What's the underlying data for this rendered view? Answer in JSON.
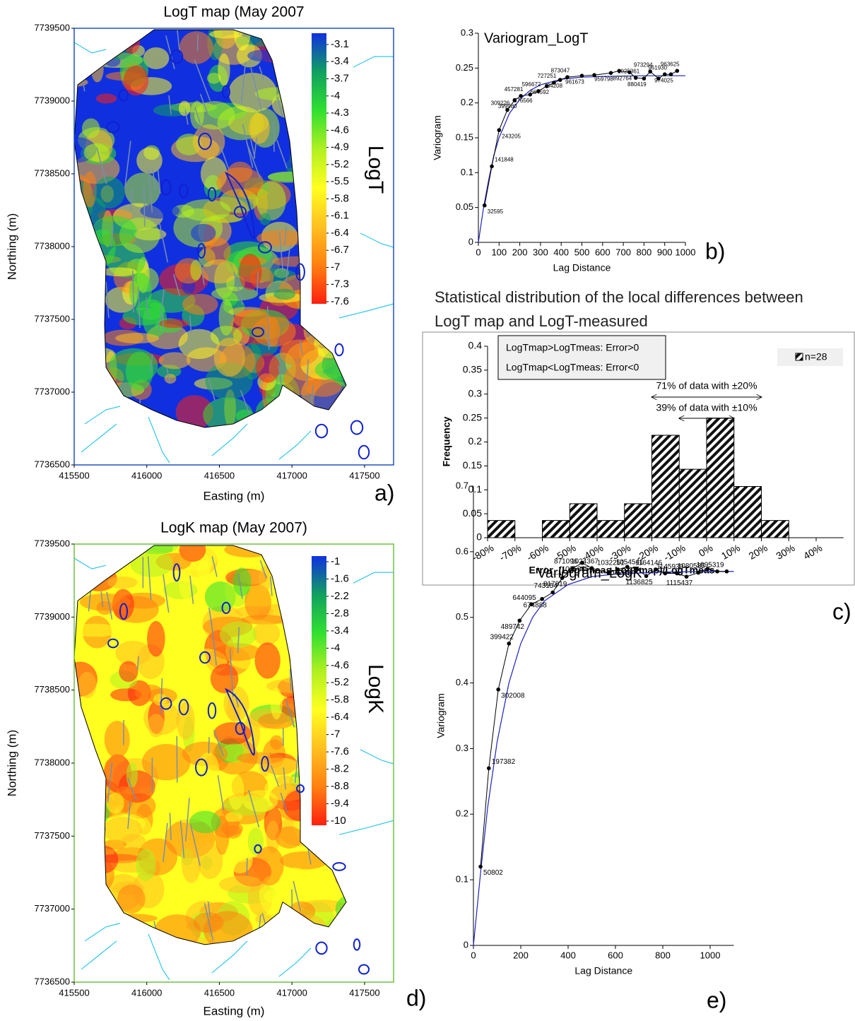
{
  "chart_data": [
    {
      "type": "map",
      "title": "LogT map (May 2007",
      "x_label": "Easting (m)",
      "y_label": "Northing (m)",
      "xlim": [
        415500,
        417700
      ],
      "xticks": [
        415500,
        416000,
        416500,
        417000,
        417500
      ],
      "ylim": [
        7736500,
        7739500
      ],
      "yticks": [
        7736500,
        7737000,
        7737500,
        7738000,
        7738500,
        7739000,
        7739500
      ],
      "colorbar_label": "LogT",
      "colorbar_ticks": [
        -3.1,
        -3.4,
        -3.7,
        -4,
        -4.3,
        -4.6,
        -4.9,
        -5.2,
        -5.5,
        -5.8,
        -6.1,
        -6.4,
        -6.7,
        -7,
        -7.3,
        -7.6
      ],
      "colormap": [
        "#1030e0",
        "#10a060",
        "#30e030",
        "#b0f020",
        "#ffff20",
        "#ffc020",
        "#ff8010",
        "#ff2010"
      ],
      "frame_color": "#2050c0",
      "panel_label": "a)"
    },
    {
      "type": "scatter",
      "title": "Variogram_LogT",
      "x_label": "Lag Distance",
      "y_label": "Variogram",
      "xlim": [
        0,
        1000
      ],
      "xticks": [
        0,
        100,
        200,
        300,
        400,
        500,
        600,
        700,
        800,
        900,
        1000
      ],
      "ylim": [
        0,
        0.3
      ],
      "yticks": [
        0,
        0.05,
        0.1,
        0.15,
        0.2,
        0.25,
        0.3
      ],
      "x": [
        30,
        65,
        100,
        140,
        175,
        205,
        250,
        290,
        330,
        365,
        395,
        430,
        500,
        560,
        640,
        680,
        730,
        760,
        800,
        830,
        870,
        900,
        930,
        960
      ],
      "y": [
        0.053,
        0.109,
        0.161,
        0.19,
        0.204,
        0.21,
        0.212,
        0.217,
        0.224,
        0.229,
        0.233,
        0.237,
        0.239,
        0.24,
        0.243,
        0.246,
        0.244,
        0.236,
        0.235,
        0.245,
        0.235,
        0.241,
        0.241,
        0.246
      ],
      "point_labels": [
        "32595",
        "141848",
        "243205",
        "309226",
        "399980",
        "457281",
        "576566",
        "596672",
        "664592",
        "727251",
        "784208",
        "873047",
        "961673",
        null,
        "959798",
        null,
        "892764",
        "1025361",
        "880419",
        "973294",
        null,
        "961930",
        "974025",
        "963625"
      ],
      "model": {
        "color": "#2020c0",
        "x": [
          0,
          25,
          50,
          75,
          100,
          150,
          200,
          250,
          300,
          400,
          500,
          600,
          800,
          1000
        ],
        "y": [
          0,
          0.05,
          0.09,
          0.125,
          0.15,
          0.185,
          0.205,
          0.218,
          0.226,
          0.234,
          0.237,
          0.238,
          0.239,
          0.239
        ]
      },
      "panel_label": "b)"
    },
    {
      "type": "histogram",
      "title": "Statistical distribution of the local differences between LogT map and LogT-measured",
      "x_label": "Error_(LogTmeas-LogTmap)/LogTmeas",
      "y_label": "Frequency",
      "bins": [
        -80,
        -70,
        -60,
        -50,
        -40,
        -30,
        -20,
        -10,
        0,
        10,
        20,
        30,
        40
      ],
      "values": [
        0.036,
        0,
        0.036,
        0.071,
        0.036,
        0.071,
        0.214,
        0.143,
        0.25,
        0.107,
        0.036,
        0
      ],
      "xlim": [
        -80,
        50
      ],
      "xticks": [
        {
          "value": -80,
          "label": "-80%"
        },
        {
          "value": -70,
          "label": "-70%"
        },
        {
          "value": -60,
          "label": "-60%"
        },
        {
          "value": -50,
          "label": "-50%"
        },
        {
          "value": -40,
          "label": "-40%"
        },
        {
          "value": -30,
          "label": "-30%"
        },
        {
          "value": -20,
          "label": "-20%"
        },
        {
          "value": -10,
          "label": "-10%"
        },
        {
          "value": 0,
          "label": "0%"
        },
        {
          "value": 10,
          "label": "10%"
        },
        {
          "value": 20,
          "label": "20%"
        },
        {
          "value": 30,
          "label": "30%"
        },
        {
          "value": 40,
          "label": "40%"
        }
      ],
      "ylim": [
        0,
        0.4
      ],
      "yticks": [
        0,
        0.05,
        0.1,
        0.15,
        0.2,
        0.25,
        0.3,
        0.35,
        0.4
      ],
      "legend_label": "n=28",
      "annotations": [
        "LogTmap>LogTmeas: Error>0",
        "LogTmap<LogTmeas: Error<0"
      ],
      "arrows": [
        {
          "text": "71% of data with ±20%",
          "span": [
            -20,
            20
          ]
        },
        {
          "text": "39% of data with ±10%",
          "span": [
            -10,
            10
          ]
        }
      ],
      "panel_label": "c)"
    },
    {
      "type": "map",
      "title": "LogK map (May 2007)",
      "x_label": "Easting (m)",
      "y_label": "Northing (m)",
      "xlim": [
        415500,
        417700
      ],
      "xticks": [
        415500,
        416000,
        416500,
        417000,
        417500
      ],
      "ylim": [
        7736500,
        7739500
      ],
      "yticks": [
        7736500,
        7737000,
        7737500,
        7738000,
        7738500,
        7739000,
        7739500
      ],
      "colorbar_label": "LogK",
      "colorbar_ticks": [
        -1,
        -1.6,
        -2.2,
        -2.8,
        -3.4,
        -4,
        -4.6,
        -5.2,
        -5.8,
        -6.4,
        -7,
        -7.6,
        -8.2,
        -8.8,
        -9.4,
        -10
      ],
      "colormap": [
        "#1030e0",
        "#10a060",
        "#30e030",
        "#b0f020",
        "#ffff20",
        "#ffc020",
        "#ff8010",
        "#ff2010"
      ],
      "frame_color": "#70c040",
      "panel_label": "d)"
    },
    {
      "type": "scatter",
      "title": "Variogram_LogK",
      "x_label": "Lag Distance",
      "y_label": "Variogram",
      "xlim": [
        0,
        1100
      ],
      "xticks": [
        0,
        200,
        400,
        600,
        800,
        1000
      ],
      "ylim": [
        0,
        0.7
      ],
      "yticks": [
        0,
        0.1,
        0.2,
        0.3,
        0.4,
        0.5,
        0.6,
        0.7
      ],
      "x": [
        30,
        65,
        105,
        150,
        195,
        245,
        290,
        335,
        375,
        420,
        460,
        500,
        570,
        610,
        650,
        690,
        730,
        770,
        810,
        860,
        900,
        950,
        990,
        1030,
        1070
      ],
      "y": [
        0.12,
        0.27,
        0.39,
        0.46,
        0.495,
        0.52,
        0.528,
        0.538,
        0.56,
        0.575,
        0.583,
        0.575,
        0.568,
        0.573,
        0.577,
        0.574,
        0.563,
        0.573,
        0.567,
        0.567,
        0.562,
        0.568,
        0.574,
        0.57,
        0.57
      ],
      "point_labels": [
        "50802",
        "197382",
        "302008",
        "399422",
        "489742",
        "644095",
        "674888",
        "743154",
        "817819",
        "871096",
        "1005966",
        "1024367",
        null,
        "1032251",
        "1042277",
        "1054541",
        "1136825",
        "1164146",
        null,
        "1145939",
        "1115437",
        "1080585",
        null,
        "1095319",
        null
      ],
      "model": {
        "color": "#2020c0",
        "x": [
          0,
          30,
          60,
          100,
          150,
          200,
          250,
          300,
          400,
          500,
          600,
          800,
          1000,
          1100
        ],
        "y": [
          0,
          0.11,
          0.21,
          0.31,
          0.4,
          0.46,
          0.5,
          0.525,
          0.55,
          0.562,
          0.566,
          0.569,
          0.57,
          0.57
        ]
      },
      "panel_label": "e)"
    }
  ]
}
